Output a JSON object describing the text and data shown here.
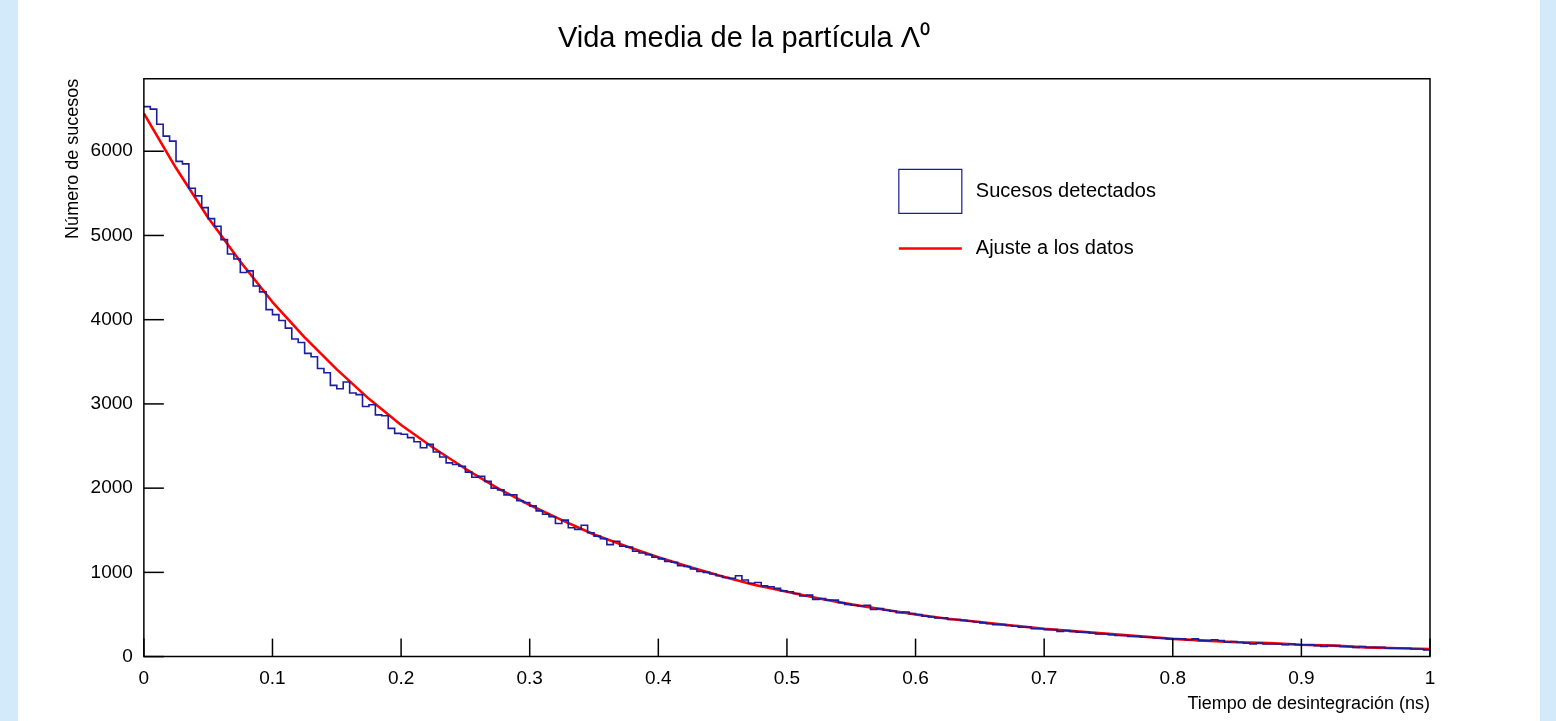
{
  "chart_data": {
    "type": "histogram",
    "title": "Vida media de la partícula Λ⁰",
    "xlabel": "Tiempo de desintegración (ns)",
    "ylabel": "Número de sucesos",
    "bins": [
      0,
      0.005,
      0.01,
      0.015,
      0.02,
      0.025,
      0.03,
      0.035,
      0.04,
      0.045,
      0.05,
      0.055,
      0.06,
      0.065,
      0.07,
      0.075,
      0.08,
      0.085,
      0.09,
      0.095,
      0.1,
      0.105,
      0.11,
      0.115,
      0.12,
      0.125,
      0.13,
      0.135,
      0.14,
      0.145,
      0.15,
      0.155,
      0.16,
      0.165,
      0.17,
      0.175,
      0.18,
      0.185,
      0.19,
      0.195,
      0.2,
      0.205,
      0.21,
      0.215,
      0.22,
      0.225,
      0.23,
      0.235,
      0.24,
      0.245,
      0.25,
      0.255,
      0.26,
      0.265,
      0.27,
      0.275,
      0.28,
      0.285,
      0.29,
      0.295,
      0.3,
      0.305,
      0.31,
      0.315,
      0.32,
      0.325,
      0.33,
      0.335,
      0.34,
      0.345,
      0.35,
      0.355,
      0.36,
      0.365,
      0.37,
      0.375,
      0.38,
      0.385,
      0.39,
      0.395,
      0.4,
      0.405,
      0.41,
      0.415,
      0.42,
      0.425,
      0.43,
      0.435,
      0.44,
      0.445,
      0.45,
      0.455,
      0.46,
      0.465,
      0.47,
      0.475,
      0.48,
      0.485,
      0.49,
      0.495,
      0.5,
      0.505,
      0.51,
      0.515,
      0.52,
      0.525,
      0.53,
      0.535,
      0.54,
      0.545,
      0.55,
      0.555,
      0.56,
      0.565,
      0.57,
      0.575,
      0.58,
      0.585,
      0.59,
      0.595,
      0.6,
      0.605,
      0.61,
      0.615,
      0.62,
      0.625,
      0.63,
      0.635,
      0.64,
      0.645,
      0.65,
      0.655,
      0.66,
      0.665,
      0.67,
      0.675,
      0.68,
      0.685,
      0.69,
      0.695,
      0.7,
      0.705,
      0.71,
      0.715,
      0.72,
      0.725,
      0.73,
      0.735,
      0.74,
      0.745,
      0.75,
      0.755,
      0.76,
      0.765,
      0.77,
      0.775,
      0.78,
      0.785,
      0.79,
      0.795,
      0.8,
      0.805,
      0.81,
      0.815,
      0.82,
      0.825,
      0.83,
      0.835,
      0.84,
      0.845,
      0.85,
      0.855,
      0.86,
      0.865,
      0.87,
      0.875,
      0.88,
      0.885,
      0.89,
      0.895,
      0.9,
      0.905,
      0.91,
      0.915,
      0.92,
      0.925,
      0.93,
      0.935,
      0.94,
      0.945,
      0.95,
      0.955,
      0.96,
      0.965,
      0.97,
      0.975,
      0.98,
      0.985,
      0.99,
      0.995,
      1
    ],
    "series": [
      {
        "name": "Sucesos detectados",
        "color": "#1c1c9c",
        "values": [
          6530,
          6500,
          6320,
          6180,
          6120,
          5880,
          5850,
          5560,
          5470,
          5330,
          5200,
          5110,
          4950,
          4780,
          4720,
          4560,
          4580,
          4400,
          4330,
          4120,
          4060,
          3990,
          3900,
          3770,
          3730,
          3600,
          3560,
          3420,
          3370,
          3220,
          3180,
          3260,
          3130,
          3110,
          2970,
          2990,
          2870,
          2860,
          2710,
          2650,
          2640,
          2600,
          2550,
          2480,
          2520,
          2430,
          2370,
          2300,
          2280,
          2260,
          2190,
          2130,
          2140,
          2080,
          2000,
          1980,
          1920,
          1920,
          1850,
          1830,
          1790,
          1730,
          1690,
          1660,
          1580,
          1620,
          1530,
          1510,
          1560,
          1470,
          1430,
          1400,
          1330,
          1370,
          1310,
          1300,
          1250,
          1230,
          1210,
          1180,
          1160,
          1130,
          1120,
          1080,
          1070,
          1040,
          1010,
          1000,
          980,
          960,
          940,
          930,
          960,
          910,
          870,
          880,
          840,
          830,
          810,
          780,
          770,
          750,
          720,
          730,
          680,
          690,
          670,
          670,
          640,
          620,
          610,
          600,
          610,
          560,
          570,
          550,
          540,
          520,
          530,
          510,
          500,
          480,
          470,
          460,
          460,
          440,
          440,
          430,
          420,
          410,
          400,
          390,
          380,
          380,
          370,
          360,
          350,
          350,
          330,
          330,
          320,
          320,
          300,
          310,
          300,
          290,
          290,
          280,
          270,
          270,
          260,
          250,
          250,
          240,
          240,
          230,
          230,
          220,
          220,
          210,
          210,
          210,
          200,
          210,
          190,
          190,
          200,
          190,
          170,
          180,
          170,
          160,
          150,
          160,
          150,
          150,
          150,
          140,
          150,
          140,
          140,
          140,
          130,
          120,
          130,
          130,
          120,
          120,
          110,
          120,
          110,
          110,
          110,
          100,
          100,
          100,
          100,
          90,
          90,
          80
        ]
      },
      {
        "name": "Ajuste a los datos",
        "type": "line",
        "color": "#ff0000",
        "x": [
          0,
          0.025,
          0.05,
          0.075,
          0.1,
          0.125,
          0.15,
          0.175,
          0.2,
          0.225,
          0.25,
          0.275,
          0.3,
          0.325,
          0.35,
          0.375,
          0.4,
          0.425,
          0.45,
          0.475,
          0.5,
          0.525,
          0.55,
          0.575,
          0.6,
          0.625,
          0.65,
          0.675,
          0.7,
          0.725,
          0.75,
          0.775,
          0.8,
          0.825,
          0.85,
          0.875,
          0.9,
          0.925,
          0.95,
          0.975,
          1
        ],
        "values": [
          6450,
          5800,
          5210,
          4690,
          4210,
          3790,
          3410,
          3060,
          2750,
          2480,
          2230,
          2000,
          1800,
          1620,
          1450,
          1310,
          1180,
          1060,
          950,
          850,
          770,
          690,
          620,
          560,
          500,
          450,
          410,
          370,
          330,
          300,
          270,
          240,
          210,
          190,
          170,
          160,
          140,
          130,
          110,
          100,
          90
        ]
      }
    ],
    "xlim": [
      0,
      1
    ],
    "xticks": [
      0,
      0.1,
      0.2,
      0.3,
      0.4,
      0.5,
      0.6,
      0.7,
      0.8,
      0.9,
      1
    ],
    "ylim": [
      0,
      6860
    ],
    "yticks": [
      0,
      1000,
      2000,
      3000,
      4000,
      5000,
      6000
    ],
    "legend": "top right",
    "marker": "none",
    "line_style": "solid"
  }
}
